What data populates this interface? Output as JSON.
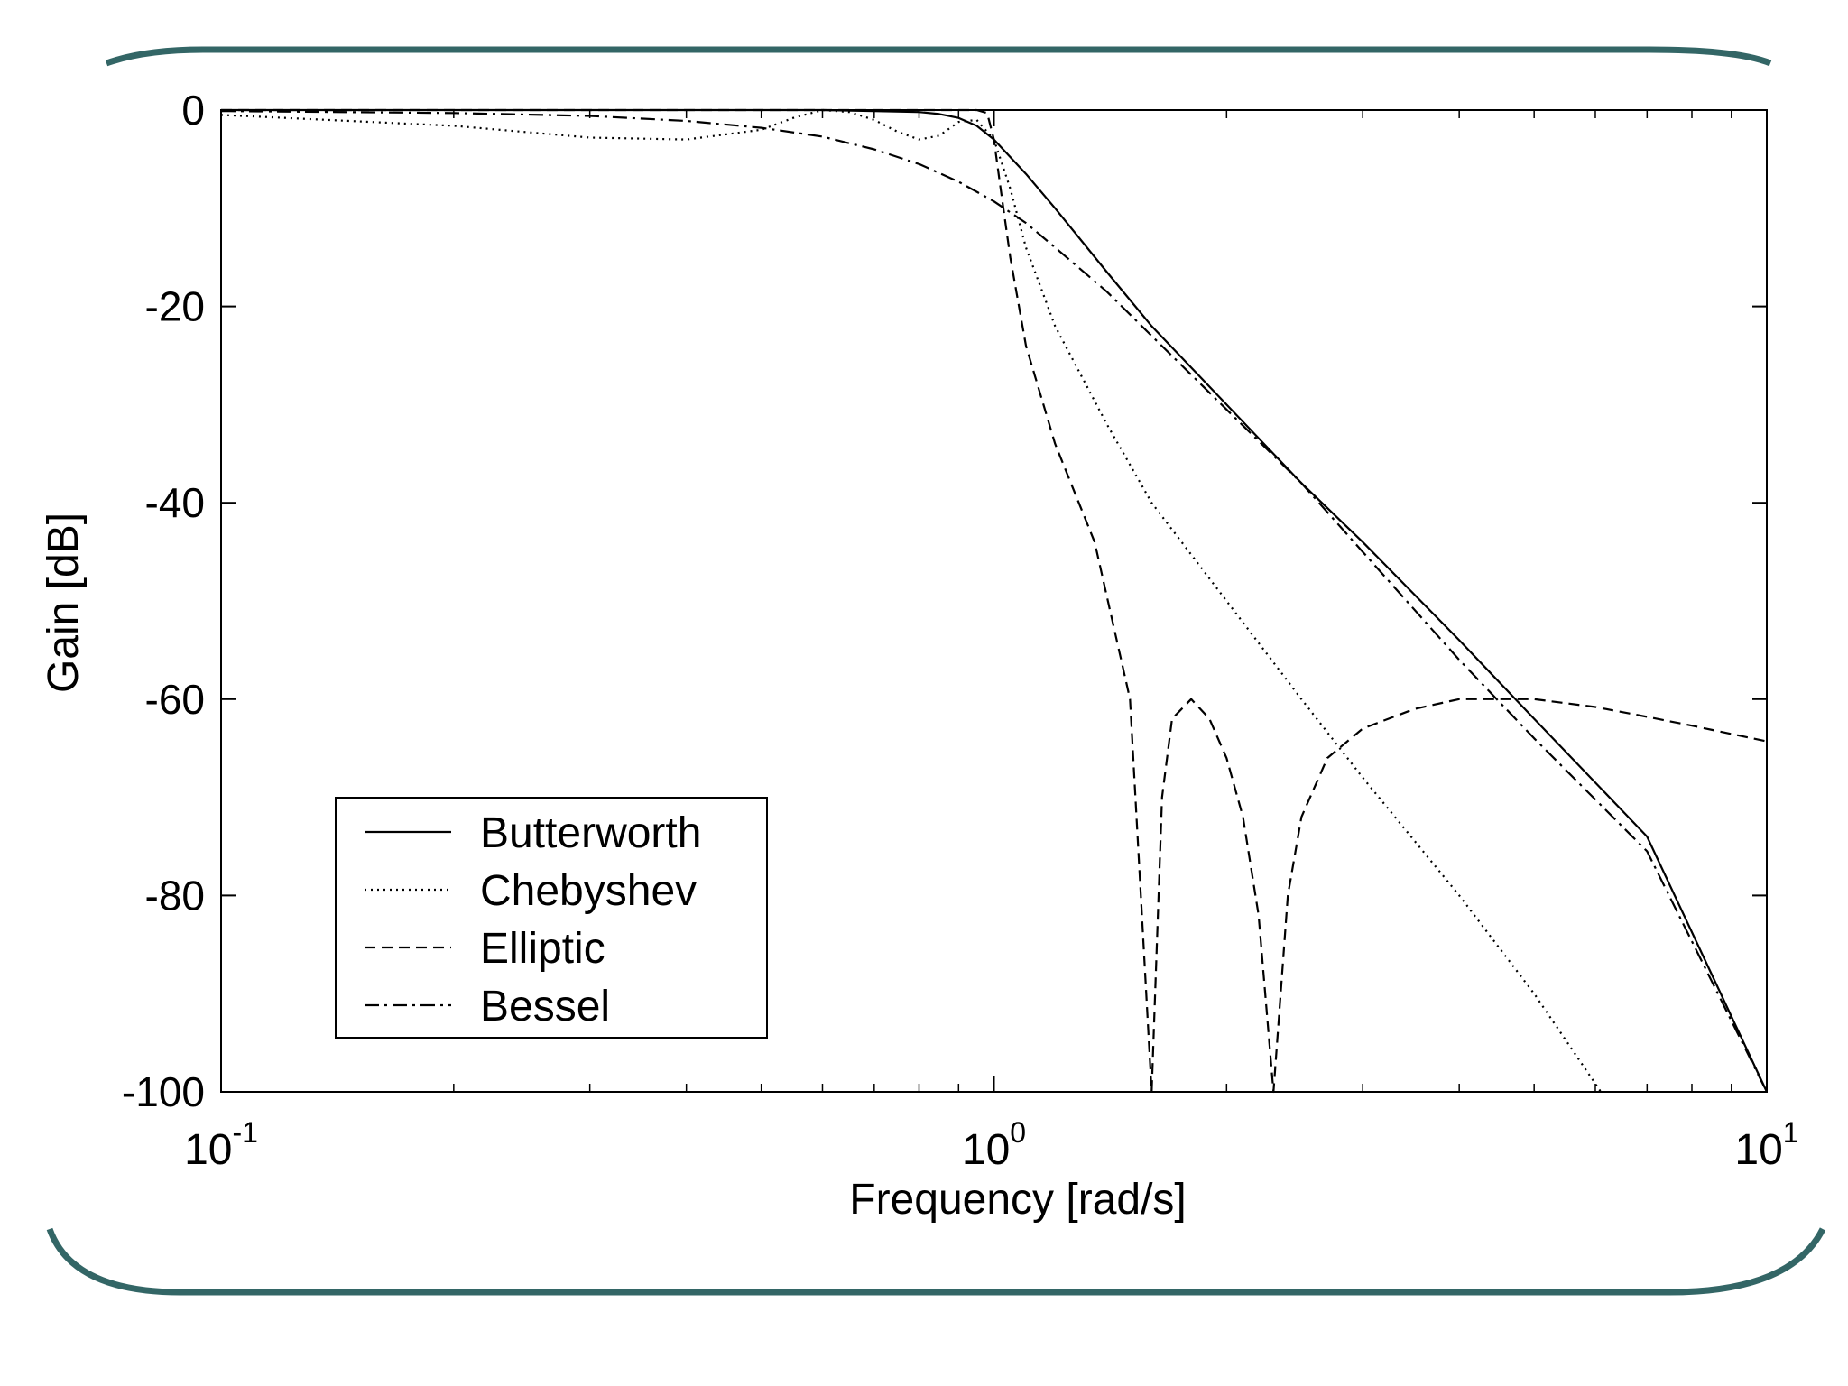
{
  "slide": {
    "frame_color": "#336666"
  },
  "chart_data": {
    "type": "line",
    "title": "",
    "xlabel": "Frequency [rad/s]",
    "ylabel": "Gain [dB]",
    "xscale": "log",
    "xlim": [
      0.1,
      10
    ],
    "ylim": [
      -100,
      0
    ],
    "x_ticks": [
      {
        "value": 0.1,
        "base": "10",
        "exp": "-1"
      },
      {
        "value": 1,
        "base": "10",
        "exp": "0"
      },
      {
        "value": 10,
        "base": "10",
        "exp": "1"
      }
    ],
    "y_ticks": [
      {
        "value": 0,
        "label": "0"
      },
      {
        "value": -20,
        "label": "-20"
      },
      {
        "value": -40,
        "label": "-40"
      },
      {
        "value": -60,
        "label": "-60"
      },
      {
        "value": -80,
        "label": "-80"
      },
      {
        "value": -100,
        "label": "-100"
      }
    ],
    "grid": false,
    "legend_position": "lower-left",
    "series": [
      {
        "name": "Butterworth",
        "style": "solid",
        "x": [
          0.1,
          0.3,
          0.5,
          0.6,
          0.7,
          0.8,
          0.85,
          0.9,
          0.95,
          1.0,
          1.1,
          1.2,
          1.4,
          1.6,
          2,
          2.5,
          3,
          4,
          5,
          7,
          10
        ],
        "y": [
          0,
          0,
          0,
          0,
          -0.1,
          -0.2,
          -0.4,
          -0.8,
          -1.6,
          -3,
          -6.5,
          -10,
          -16.5,
          -22,
          -30,
          -38,
          -44,
          -54,
          -62,
          -74,
          -100
        ]
      },
      {
        "name": "Chebyshev",
        "style": "dotted",
        "x": [
          0.1,
          0.2,
          0.3,
          0.4,
          0.5,
          0.55,
          0.6,
          0.65,
          0.7,
          0.75,
          0.8,
          0.85,
          0.9,
          0.95,
          1.0,
          1.05,
          1.1,
          1.2,
          1.4,
          1.6,
          2,
          2.5,
          3,
          4,
          5,
          6.1
        ],
        "y": [
          -0.5,
          -1.6,
          -2.8,
          -3,
          -2,
          -0.8,
          0,
          -0.2,
          -1,
          -2.2,
          -3,
          -2.6,
          -1.2,
          -1,
          -3,
          -8,
          -14,
          -22,
          -32,
          -40,
          -50,
          -60,
          -68,
          -80,
          -90,
          -100
        ]
      },
      {
        "name": "Elliptic",
        "style": "dashed",
        "x": [
          0.1,
          0.4,
          0.6,
          0.8,
          0.9,
          0.95,
          0.98,
          1.0,
          1.02,
          1.05,
          1.1,
          1.2,
          1.35,
          1.5,
          1.6,
          1.65,
          1.7,
          1.8,
          1.9,
          2.0,
          2.1,
          2.2,
          2.3,
          2.4,
          2.5,
          2.7,
          3.0,
          3.5,
          4.0,
          4.5,
          5,
          6,
          7,
          8,
          10
        ],
        "y": [
          0,
          0,
          0,
          0,
          0,
          0,
          -0.3,
          -3,
          -8,
          -15,
          -24,
          -34,
          -44,
          -60,
          -100,
          -70,
          -62,
          -60,
          -62,
          -66,
          -72,
          -82,
          -100,
          -80,
          -72,
          -66,
          -63,
          -61,
          -60,
          -60,
          -60,
          -60.8,
          -61.8,
          -62.7,
          -64.3
        ]
      },
      {
        "name": "Bessel",
        "style": "dashdot",
        "x": [
          0.1,
          0.2,
          0.3,
          0.4,
          0.5,
          0.6,
          0.7,
          0.8,
          0.9,
          1.0,
          1.1,
          1.2,
          1.4,
          1.6,
          2,
          2.5,
          3,
          4,
          5,
          7,
          10
        ],
        "y": [
          -0.1,
          -0.3,
          -0.6,
          -1.1,
          -1.8,
          -2.7,
          -4,
          -5.5,
          -7.3,
          -9.3,
          -11.5,
          -14,
          -18.5,
          -23,
          -30.5,
          -38,
          -45,
          -56,
          -64,
          -75.5,
          -100
        ]
      }
    ]
  }
}
